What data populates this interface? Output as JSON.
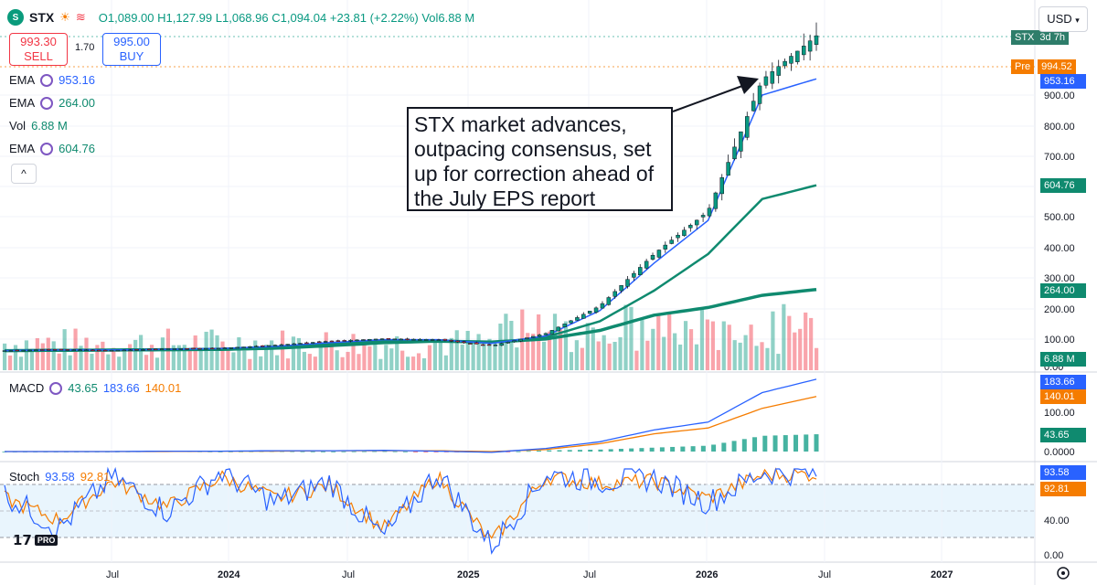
{
  "header": {
    "symbol": "STX",
    "open": "O1,089.00",
    "high": "H1,127.99",
    "low": "L1,068.96",
    "close": "C1,094.04",
    "change": "+23.81 (+2.22%)",
    "volume": "Vol6.88 M"
  },
  "trade": {
    "sell_price": "993.30",
    "sell_label": "SELL",
    "spread": "1.70",
    "buy_price": "995.00",
    "buy_label": "BUY"
  },
  "currency": "USD",
  "annotation": "STX market advances, outpacing consensus, set up for correction ahead of the July EPS report",
  "indicators": {
    "ema1": {
      "name": "EMA",
      "value": "953.16"
    },
    "ema2": {
      "name": "EMA",
      "value": "264.00"
    },
    "vol": {
      "name": "Vol",
      "value": "6.88 M"
    },
    "ema3": {
      "name": "EMA",
      "value": "604.76"
    },
    "macd": {
      "name": "MACD",
      "hist": "43.65",
      "macd": "183.66",
      "signal": "140.01"
    },
    "stoch": {
      "name": "Stoch",
      "k": "93.58",
      "d": "92.81"
    }
  },
  "price_badges": {
    "symbol_tag": "STX",
    "countdown": "3d 7h",
    "pre_label": "Pre",
    "pre_value": "994.52",
    "ema1": "953.16",
    "ema3": "604.76",
    "ema2": "264.00",
    "vol": "6.88 M",
    "macd": "183.66",
    "signal": "140.01",
    "hist": "43.65",
    "stoch_k": "93.58",
    "stoch_d": "92.81"
  },
  "colors": {
    "up": "#089981",
    "down": "#f23645",
    "ema_fast": "#2962ff",
    "ema_slow": "#0f8a6f",
    "macd": "#2962ff",
    "signal": "#f57c00",
    "stoch_k": "#2962ff",
    "stoch_d": "#f57c00",
    "pre": "#f57c00"
  },
  "chart_data": [
    {
      "type": "line",
      "title": "",
      "scale": "log",
      "price_axis_ticks": [
        "900.00",
        "800.00",
        "700.00",
        "600.00",
        "500.00",
        "400.00",
        "300.00",
        "200.00",
        "100.00",
        "0.00"
      ],
      "time_axis_labels": [
        "Jul",
        "2024",
        "Jul",
        "2025",
        "Jul",
        "2026",
        "Jul",
        "2027"
      ],
      "x": [
        "2023-01",
        "2023-04",
        "2023-07",
        "2023-10",
        "2024-01",
        "2024-04",
        "2024-07",
        "2024-10",
        "2025-01",
        "2025-04",
        "2025-07",
        "2025-10",
        "2026-01",
        "2026-03",
        "2026-05",
        "2026-06"
      ],
      "series": [
        {
          "name": "STX",
          "values": [
            64,
            68,
            65,
            70,
            72,
            82,
            95,
            103,
            100,
            80,
            120,
            210,
            380,
            520,
            950,
            1094
          ]
        }
      ],
      "ema1": [
        64,
        66,
        66,
        68,
        71,
        78,
        90,
        100,
        100,
        88,
        112,
        195,
        350,
        490,
        900,
        953
      ],
      "ema2": [
        64,
        65,
        66,
        67,
        68,
        72,
        80,
        90,
        95,
        92,
        102,
        130,
        180,
        205,
        245,
        264
      ],
      "ema3": [
        64,
        65,
        65,
        67,
        70,
        75,
        86,
        96,
        98,
        90,
        108,
        160,
        260,
        380,
        560,
        605
      ],
      "volume_note": "volume bars, last 6.88 M"
    },
    {
      "type": "line",
      "title": "MACD",
      "series": [
        {
          "name": "MACD",
          "values": [
            0,
            0,
            0,
            1,
            1,
            2,
            2,
            3,
            1,
            -2,
            8,
            25,
            55,
            75,
            150,
            184
          ]
        },
        {
          "name": "Signal",
          "values": [
            0,
            0,
            0,
            0,
            1,
            1,
            2,
            2,
            2,
            0,
            5,
            20,
            45,
            60,
            110,
            140
          ]
        }
      ],
      "histogram_last": 43.65
    },
    {
      "type": "line",
      "title": "Stoch",
      "ylim": [
        0,
        100
      ],
      "levels": [
        20,
        50,
        80
      ],
      "series": [
        {
          "name": "%K",
          "values": [
            70,
            30,
            90,
            50,
            95,
            60,
            85,
            20,
            95,
            10,
            93,
            85,
            88,
            60,
            95,
            94
          ]
        },
        {
          "name": "%D",
          "values": [
            65,
            40,
            85,
            55,
            90,
            65,
            80,
            30,
            90,
            15,
            90,
            82,
            85,
            65,
            92,
            93
          ]
        }
      ],
      "axis_ticks": [
        "40.00",
        "0.00"
      ]
    }
  ]
}
